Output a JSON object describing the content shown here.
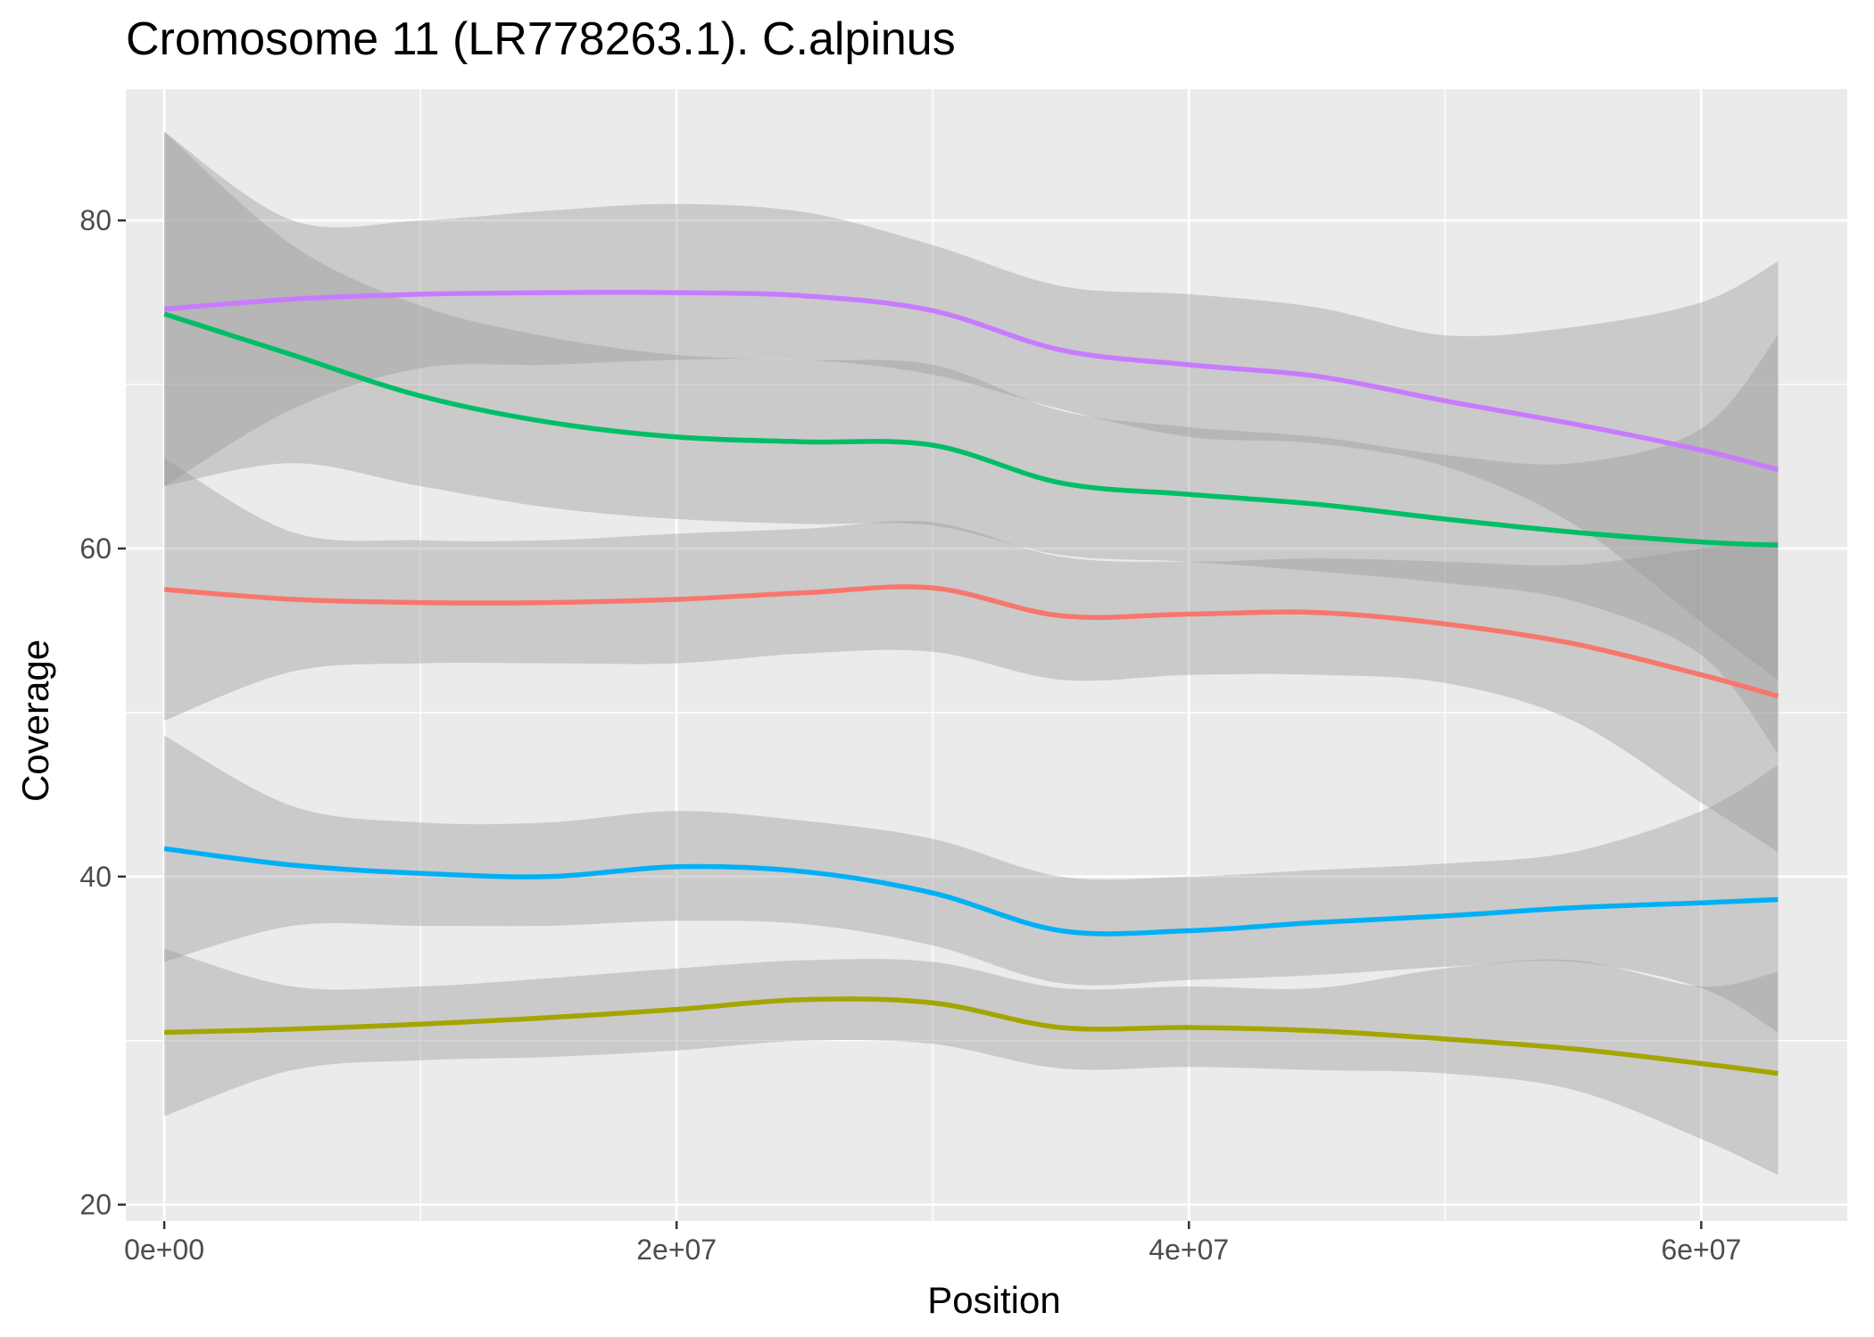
{
  "chart_data": {
    "type": "line",
    "title": "Cromosome 11 (LR778263.1). C.alpinus",
    "xlabel": "Position",
    "ylabel": "Coverage",
    "xlim": [
      -1500000,
      65700000
    ],
    "ylim": [
      19,
      88
    ],
    "x_ticks": [
      {
        "value": 0,
        "label": "0e+00"
      },
      {
        "value": 20000000,
        "label": "2e+07"
      },
      {
        "value": 40000000,
        "label": "4e+07"
      },
      {
        "value": 60000000,
        "label": "6e+07"
      }
    ],
    "y_ticks": [
      {
        "value": 20,
        "label": "20"
      },
      {
        "value": 40,
        "label": "40"
      },
      {
        "value": 60,
        "label": "60"
      },
      {
        "value": 80,
        "label": "80"
      }
    ],
    "x_minor": [
      10000000,
      30000000,
      50000000
    ],
    "y_minor": [
      30,
      50,
      70
    ],
    "grid": true,
    "legend": "none",
    "panel_color": "#ebebeb",
    "band_color": "#999999",
    "series": [
      {
        "color": "#c77cff",
        "x": [
          0,
          5000000,
          10000000,
          15000000,
          20000000,
          25000000,
          30000000,
          35000000,
          40000000,
          45000000,
          50000000,
          55000000,
          60000000,
          63000000
        ],
        "y": [
          74.6,
          75.2,
          75.5,
          75.6,
          75.6,
          75.4,
          74.5,
          72.1,
          71.2,
          70.5,
          69.0,
          67.6,
          66.0,
          64.8
        ],
        "lower": [
          63.8,
          68.5,
          71.0,
          71.2,
          71.5,
          71.5,
          70.6,
          68.5,
          66.8,
          66.4,
          65.0,
          61.5,
          55.5,
          52.0
        ],
        "upper": [
          85.4,
          80.0,
          80.0,
          80.6,
          81.0,
          80.5,
          78.5,
          76.0,
          75.5,
          74.7,
          73.0,
          73.5,
          75.0,
          77.5
        ]
      },
      {
        "color": "#00be67",
        "x": [
          0,
          5000000,
          10000000,
          15000000,
          20000000,
          25000000,
          30000000,
          35000000,
          40000000,
          45000000,
          50000000,
          55000000,
          60000000,
          63000000
        ],
        "y": [
          74.3,
          71.8,
          69.3,
          67.7,
          66.8,
          66.5,
          66.3,
          64.0,
          63.3,
          62.7,
          61.8,
          61.0,
          60.4,
          60.2
        ],
        "lower": [
          63.8,
          65.2,
          63.8,
          62.5,
          61.8,
          61.5,
          61.4,
          59.6,
          59.2,
          58.6,
          57.9,
          56.8,
          53.5,
          47.5
        ],
        "upper": [
          85.4,
          78.5,
          74.8,
          72.9,
          71.8,
          71.5,
          71.2,
          68.4,
          67.4,
          66.8,
          65.7,
          65.2,
          67.3,
          73.0
        ]
      },
      {
        "color": "#f8766d",
        "x": [
          0,
          5000000,
          10000000,
          15000000,
          20000000,
          25000000,
          30000000,
          35000000,
          40000000,
          45000000,
          50000000,
          55000000,
          60000000,
          63000000
        ],
        "y": [
          57.5,
          56.9,
          56.7,
          56.7,
          56.9,
          57.3,
          57.6,
          55.9,
          56.0,
          56.1,
          55.4,
          54.2,
          52.3,
          51.0
        ],
        "lower": [
          49.5,
          52.5,
          53.0,
          53.0,
          53.0,
          53.6,
          53.7,
          52.0,
          52.3,
          52.3,
          51.8,
          49.5,
          44.5,
          41.5
        ],
        "upper": [
          65.5,
          61.0,
          60.5,
          60.5,
          60.9,
          61.2,
          61.6,
          59.5,
          59.2,
          59.4,
          59.2,
          59.0,
          60.0,
          60.5
        ]
      },
      {
        "color": "#00b0f6",
        "x": [
          0,
          5000000,
          10000000,
          15000000,
          20000000,
          25000000,
          30000000,
          35000000,
          40000000,
          45000000,
          50000000,
          55000000,
          60000000,
          63000000
        ],
        "y": [
          41.7,
          40.7,
          40.2,
          40.0,
          40.6,
          40.3,
          39.0,
          36.7,
          36.7,
          37.2,
          37.6,
          38.1,
          38.4,
          38.6
        ],
        "lower": [
          34.8,
          37.0,
          37.0,
          37.0,
          37.3,
          37.1,
          35.8,
          33.5,
          33.7,
          34.0,
          34.5,
          34.8,
          33.2,
          30.5
        ],
        "upper": [
          48.6,
          44.3,
          43.3,
          43.3,
          44.0,
          43.4,
          42.3,
          40.0,
          40.0,
          40.4,
          40.8,
          41.5,
          44.0,
          46.8
        ]
      },
      {
        "color": "#a3a500",
        "x": [
          0,
          5000000,
          10000000,
          15000000,
          20000000,
          25000000,
          30000000,
          35000000,
          40000000,
          45000000,
          50000000,
          55000000,
          60000000,
          63000000
        ],
        "y": [
          30.5,
          30.7,
          31.0,
          31.4,
          31.9,
          32.5,
          32.3,
          30.8,
          30.8,
          30.6,
          30.1,
          29.5,
          28.6,
          28.0
        ],
        "lower": [
          25.4,
          28.2,
          28.8,
          29.0,
          29.4,
          30.0,
          29.8,
          28.3,
          28.4,
          28.2,
          28.0,
          27.0,
          24.0,
          21.8
        ],
        "upper": [
          35.6,
          33.3,
          33.3,
          33.8,
          34.4,
          34.9,
          34.8,
          33.2,
          33.3,
          33.2,
          34.4,
          34.9,
          33.3,
          34.2
        ]
      }
    ]
  }
}
